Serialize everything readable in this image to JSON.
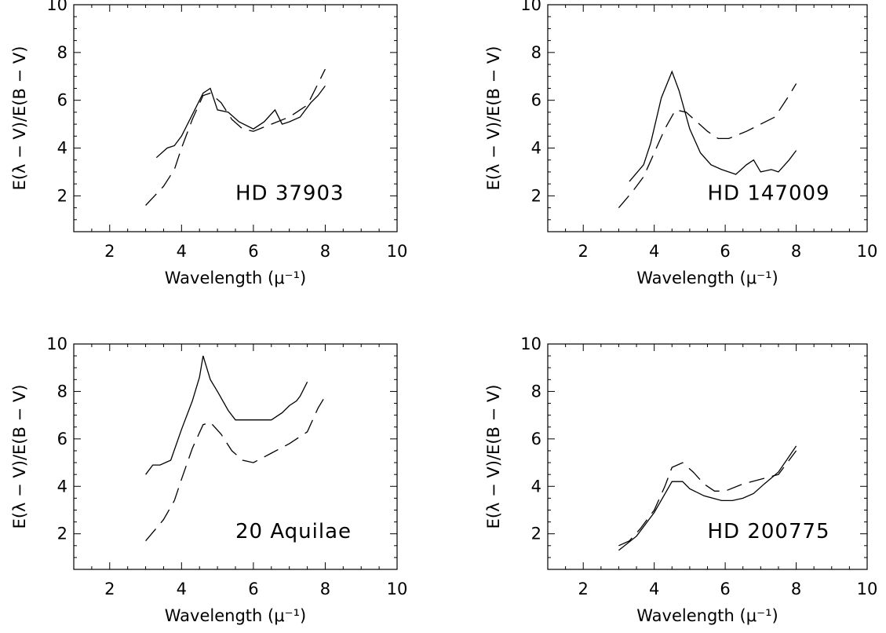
{
  "chart_data": [
    {
      "type": "line",
      "annotation": "HD 37903",
      "xlabel": "Wavelength (μ⁻¹)",
      "ylabel": "E(λ − V)/E(B − V)",
      "xlim": [
        1,
        10
      ],
      "ylim": [
        0.5,
        10
      ],
      "xticks": [
        2,
        4,
        6,
        8,
        10
      ],
      "yticks": [
        2,
        4,
        6,
        8,
        10
      ],
      "series": [
        {
          "style": "solid",
          "x": [
            3.3,
            3.6,
            3.8,
            4.0,
            4.3,
            4.6,
            4.8,
            5.0,
            5.3,
            5.6,
            6.0,
            6.3,
            6.6,
            6.8,
            7.0,
            7.3,
            7.6,
            7.8,
            8.0
          ],
          "y": [
            3.6,
            4.0,
            4.1,
            4.5,
            5.4,
            6.3,
            6.5,
            5.6,
            5.5,
            5.1,
            4.8,
            5.1,
            5.6,
            5.0,
            5.1,
            5.3,
            5.9,
            6.2,
            6.6
          ]
        },
        {
          "style": "dashed",
          "x": [
            3.0,
            3.5,
            3.8,
            4.0,
            4.3,
            4.6,
            4.8,
            5.1,
            5.4,
            5.7,
            6.0,
            6.5,
            7.0,
            7.5,
            7.8,
            8.0
          ],
          "y": [
            1.6,
            2.4,
            3.1,
            4.0,
            5.2,
            6.2,
            6.3,
            5.9,
            5.2,
            4.8,
            4.7,
            5.0,
            5.3,
            5.8,
            6.7,
            7.3
          ]
        }
      ]
    },
    {
      "type": "line",
      "annotation": "HD 147009",
      "xlabel": "Wavelength (μ⁻¹)",
      "ylabel": "E(λ − V)/E(B − V)",
      "xlim": [
        1,
        10
      ],
      "ylim": [
        0.5,
        10
      ],
      "xticks": [
        2,
        4,
        6,
        8,
        10
      ],
      "yticks": [
        2,
        4,
        6,
        8,
        10
      ],
      "series": [
        {
          "style": "solid",
          "x": [
            3.3,
            3.7,
            3.9,
            4.2,
            4.5,
            4.7,
            5.0,
            5.3,
            5.6,
            5.9,
            6.3,
            6.6,
            6.8,
            7.0,
            7.3,
            7.5,
            7.8,
            8.0
          ],
          "y": [
            2.6,
            3.3,
            4.2,
            6.1,
            7.2,
            6.4,
            4.8,
            3.8,
            3.3,
            3.1,
            2.9,
            3.3,
            3.5,
            3.0,
            3.1,
            3.0,
            3.5,
            3.9
          ]
        },
        {
          "style": "dashed",
          "x": [
            3.0,
            3.4,
            3.7,
            4.0,
            4.3,
            4.6,
            4.9,
            5.2,
            5.5,
            5.8,
            6.1,
            6.6,
            7.0,
            7.4,
            7.8,
            8.0
          ],
          "y": [
            1.5,
            2.2,
            2.8,
            3.8,
            4.8,
            5.6,
            5.5,
            5.1,
            4.7,
            4.4,
            4.4,
            4.7,
            5.0,
            5.3,
            6.2,
            6.7
          ]
        }
      ]
    },
    {
      "type": "line",
      "annotation": "20 Aquilae",
      "xlabel": "Wavelength (μ⁻¹)",
      "ylabel": "E(λ − V)/E(B − V)",
      "xlim": [
        1,
        10
      ],
      "ylim": [
        0.5,
        10
      ],
      "xticks": [
        2,
        4,
        6,
        8,
        10
      ],
      "yticks": [
        2,
        4,
        6,
        8,
        10
      ],
      "series": [
        {
          "style": "solid",
          "x": [
            3.0,
            3.2,
            3.4,
            3.7,
            4.0,
            4.3,
            4.5,
            4.6,
            4.8,
            5.0,
            5.3,
            5.5,
            6.0,
            6.5,
            6.8,
            7.0,
            7.2,
            7.3,
            7.5
          ],
          "y": [
            4.5,
            4.9,
            4.9,
            5.1,
            6.4,
            7.6,
            8.6,
            9.5,
            8.5,
            8.0,
            7.2,
            6.8,
            6.8,
            6.8,
            7.1,
            7.4,
            7.6,
            7.8,
            8.4
          ]
        },
        {
          "style": "dashed",
          "x": [
            3.0,
            3.5,
            3.8,
            4.0,
            4.3,
            4.6,
            4.8,
            5.1,
            5.4,
            5.7,
            6.0,
            6.5,
            7.0,
            7.5,
            7.8,
            8.0
          ],
          "y": [
            1.7,
            2.6,
            3.4,
            4.3,
            5.6,
            6.6,
            6.7,
            6.2,
            5.5,
            5.1,
            5.0,
            5.4,
            5.8,
            6.3,
            7.3,
            7.8
          ]
        }
      ]
    },
    {
      "type": "line",
      "annotation": "HD 200775",
      "xlabel": "Wavelength (μ⁻¹)",
      "ylabel": "E(λ − V)/E(B − V)",
      "xlim": [
        1,
        10
      ],
      "ylim": [
        0.5,
        10
      ],
      "xticks": [
        2,
        4,
        6,
        8,
        10
      ],
      "yticks": [
        2,
        4,
        6,
        8,
        10
      ],
      "series": [
        {
          "style": "solid",
          "x": [
            3.0,
            3.5,
            4.0,
            4.5,
            4.8,
            5.0,
            5.4,
            5.9,
            6.2,
            6.5,
            6.8,
            7.1,
            7.5,
            8.0
          ],
          "y": [
            1.3,
            1.9,
            2.9,
            4.2,
            4.2,
            3.9,
            3.6,
            3.4,
            3.4,
            3.5,
            3.7,
            4.1,
            4.6,
            5.7
          ]
        },
        {
          "style": "dashed",
          "x": [
            3.0,
            3.3,
            3.6,
            4.0,
            4.3,
            4.5,
            4.8,
            5.1,
            5.4,
            5.7,
            6.0,
            6.5,
            7.0,
            7.5,
            8.0
          ],
          "y": [
            1.5,
            1.7,
            2.2,
            3.0,
            4.0,
            4.8,
            5.0,
            4.6,
            4.1,
            3.8,
            3.8,
            4.1,
            4.3,
            4.5,
            5.5
          ]
        }
      ]
    }
  ]
}
